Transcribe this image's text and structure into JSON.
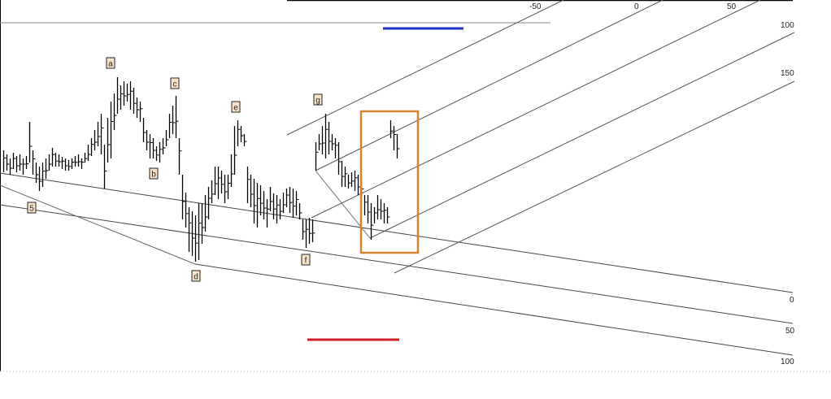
{
  "chart_data": {
    "type": "bar",
    "subtype": "ohlc-price-bars",
    "title": "",
    "xlabel": "",
    "ylabel": "",
    "grid": false,
    "bars_high_low": [
      [
        315,
        288
      ],
      [
        310,
        290
      ],
      [
        305,
        285
      ],
      [
        312,
        292
      ],
      [
        308,
        288
      ],
      [
        310,
        290
      ],
      [
        305,
        285
      ],
      [
        308,
        292
      ],
      [
        350,
        300
      ],
      [
        315,
        285
      ],
      [
        300,
        275
      ],
      [
        295,
        265
      ],
      [
        300,
        270
      ],
      [
        305,
        280
      ],
      [
        310,
        290
      ],
      [
        318,
        295
      ],
      [
        312,
        295
      ],
      [
        310,
        295
      ],
      [
        307,
        292
      ],
      [
        305,
        290
      ],
      [
        303,
        290
      ],
      [
        305,
        292
      ],
      [
        308,
        295
      ],
      [
        310,
        295
      ],
      [
        305,
        292
      ],
      [
        312,
        300
      ],
      [
        322,
        302
      ],
      [
        330,
        308
      ],
      [
        340,
        315
      ],
      [
        350,
        320
      ],
      [
        360,
        310
      ],
      [
        322,
        268
      ],
      [
        355,
        300
      ],
      [
        375,
        305
      ],
      [
        385,
        340
      ],
      [
        405,
        360
      ],
      [
        395,
        365
      ],
      [
        400,
        370
      ],
      [
        397,
        375
      ],
      [
        400,
        365
      ],
      [
        392,
        360
      ],
      [
        380,
        355
      ],
      [
        375,
        350
      ],
      [
        355,
        325
      ],
      [
        340,
        315
      ],
      [
        335,
        305
      ],
      [
        330,
        305
      ],
      [
        320,
        302
      ],
      [
        325,
        300
      ],
      [
        330,
        310
      ],
      [
        340,
        320
      ],
      [
        360,
        330
      ],
      [
        370,
        335
      ],
      [
        382,
        330
      ],
      [
        330,
        285
      ],
      [
        285,
        230
      ],
      [
        263,
        220
      ],
      [
        245,
        190
      ],
      [
        240,
        185
      ],
      [
        235,
        178
      ],
      [
        250,
        180
      ],
      [
        250,
        200
      ],
      [
        260,
        215
      ],
      [
        270,
        230
      ],
      [
        278,
        250
      ],
      [
        295,
        260
      ],
      [
        295,
        255
      ],
      [
        290,
        262
      ],
      [
        285,
        250
      ],
      [
        285,
        255
      ],
      [
        310,
        270
      ],
      [
        345,
        285
      ],
      [
        352,
        320
      ],
      [
        345,
        325
      ],
      [
        335,
        320
      ],
      [
        295,
        250
      ],
      [
        285,
        245
      ],
      [
        280,
        225
      ],
      [
        275,
        220
      ],
      [
        272,
        235
      ],
      [
        265,
        230
      ],
      [
        255,
        220
      ],
      [
        270,
        240
      ],
      [
        262,
        230
      ],
      [
        260,
        225
      ],
      [
        255,
        230
      ],
      [
        263,
        238
      ],
      [
        268,
        245
      ],
      [
        270,
        238
      ],
      [
        268,
        232
      ],
      [
        265,
        235
      ],
      [
        250,
        230
      ],
      [
        230,
        205
      ],
      [
        230,
        195
      ],
      [
        232,
        200
      ],
      [
        230,
        202
      ],
      [
        325,
        290
      ],
      [
        335,
        315
      ],
      [
        345,
        310
      ],
      [
        360,
        305
      ],
      [
        350,
        310
      ],
      [
        335,
        315
      ],
      [
        330,
        305
      ],
      [
        325,
        285
      ],
      [
        302,
        270
      ],
      [
        295,
        270
      ],
      [
        285,
        268
      ],
      [
        288,
        270
      ],
      [
        290,
        265
      ],
      [
        285,
        260
      ],
      [
        282,
        258
      ],
      [
        260,
        235
      ],
      [
        260,
        225
      ],
      [
        250,
        205
      ],
      [
        245,
        225
      ],
      [
        260,
        230
      ],
      [
        255,
        230
      ],
      [
        250,
        225
      ],
      [
        245,
        225
      ],
      [
        352,
        330
      ],
      [
        345,
        315
      ],
      [
        335,
        305
      ]
    ],
    "wave_labels": [
      "a",
      "b",
      "c",
      "d",
      "e",
      "f",
      "g",
      "5"
    ],
    "upper_fan_labels": [
      "-50",
      "0",
      "50",
      "100",
      "150"
    ],
    "lower_channel_labels": [
      "0",
      "50",
      "100"
    ],
    "colors": {
      "bars": "#000000",
      "trendlines": "#555555",
      "highlight_box": "#d9822b",
      "blue_marker": "#1f2fbf",
      "red_marker": "#d01f26",
      "label_fill": "#fbe3c8"
    }
  }
}
